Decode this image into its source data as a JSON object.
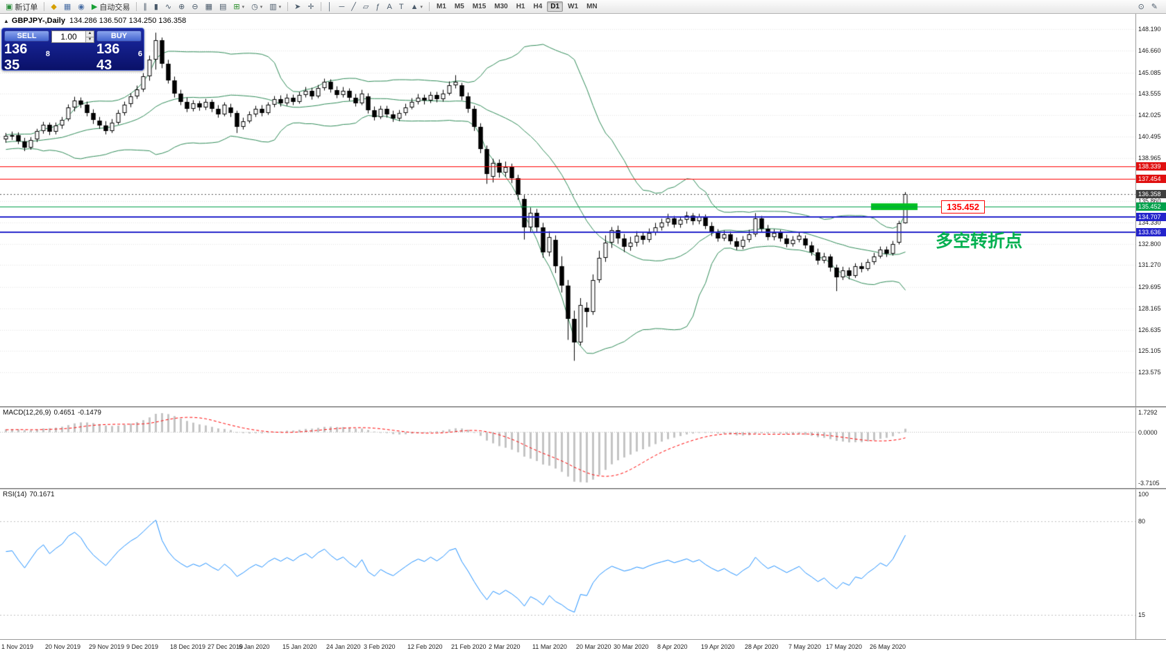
{
  "toolbar": {
    "items": [
      {
        "name": "new-order",
        "glyph": "▣",
        "glyph_color": "#2e8f3e",
        "label": "新订单"
      },
      {
        "name": "sep"
      },
      {
        "name": "alerts",
        "glyph": "◆",
        "glyph_color": "#d59f00"
      },
      {
        "name": "market-watch",
        "glyph": "▦",
        "glyph_color": "#4a6fa5"
      },
      {
        "name": "data-window",
        "glyph": "◉",
        "glyph_color": "#4a6fa5"
      },
      {
        "name": "autotrading",
        "glyph": "▶",
        "glyph_color": "#18a035",
        "label": "自动交易"
      },
      {
        "name": "sep"
      },
      {
        "name": "bar-chart",
        "glyph": "∥"
      },
      {
        "name": "candlestick-chart",
        "glyph": "▮"
      },
      {
        "name": "line-chart",
        "glyph": "∿"
      },
      {
        "name": "zoom-in",
        "glyph": "⊕"
      },
      {
        "name": "zoom-out",
        "glyph": "⊖"
      },
      {
        "name": "tile-windows",
        "glyph": "▦"
      },
      {
        "name": "auto-arrange",
        "glyph": "▤"
      },
      {
        "name": "new-chart",
        "glyph": "⊞",
        "glyph_color": "#2a8f2a",
        "dropdown": true
      },
      {
        "name": "profiles",
        "glyph": "◷",
        "dropdown": true
      },
      {
        "name": "templates",
        "glyph": "▥",
        "dropdown": true
      },
      {
        "name": "sep"
      },
      {
        "name": "cursor",
        "glyph": "➤"
      },
      {
        "name": "crosshair",
        "glyph": "✛"
      },
      {
        "name": "sep"
      },
      {
        "name": "vertical-line",
        "glyph": "│"
      },
      {
        "name": "horizontal-line",
        "glyph": "─"
      },
      {
        "name": "trendline",
        "glyph": "╱"
      },
      {
        "name": "equidistant-channel",
        "glyph": "▱"
      },
      {
        "name": "fibonacci",
        "glyph": "ƒ"
      },
      {
        "name": "text",
        "glyph": "A"
      },
      {
        "name": "text-label",
        "glyph": "T"
      },
      {
        "name": "arrows-shapes",
        "glyph": "▲",
        "dropdown": true
      },
      {
        "name": "sep"
      }
    ],
    "timeframes": [
      "M1",
      "M5",
      "M15",
      "M30",
      "H1",
      "H4",
      "D1",
      "W1",
      "MN"
    ],
    "active_timeframe": "D1",
    "right_items": [
      {
        "name": "search",
        "glyph": "⊙"
      },
      {
        "name": "metaeditor",
        "glyph": "✎"
      }
    ]
  },
  "chart": {
    "title": "GBPJPY-,Daily",
    "ohlc_text": "134.286 136.507 134.250 136.358",
    "collapse_arrow": "▲",
    "trade_panel": {
      "sell_label": "SELL",
      "buy_label": "BUY",
      "volume": "1.00",
      "sell_price_main": "136 35",
      "sell_price_sup": "8",
      "buy_price_main": "136 43",
      "buy_price_sup": "6"
    }
  },
  "chart_data": {
    "type": "candlestick",
    "symbol": "GBPJPY-",
    "period": "Daily",
    "current": {
      "open": 134.286,
      "high": 136.507,
      "low": 134.25,
      "close": 136.358,
      "bid": 136.358,
      "ask": 136.436
    },
    "y_view_range": [
      121.14,
      149.3
    ],
    "y_ticks": [
      148.19,
      146.66,
      145.085,
      143.555,
      142.025,
      140.495,
      138.965,
      137.435,
      135.86,
      134.33,
      132.8,
      131.27,
      129.695,
      128.165,
      126.635,
      125.105,
      123.575
    ],
    "candles": [
      [
        140.3,
        140.75,
        140.05,
        140.55
      ],
      [
        140.55,
        140.85,
        140.25,
        140.6
      ],
      [
        140.6,
        140.8,
        139.95,
        140.15
      ],
      [
        140.15,
        140.4,
        139.45,
        139.7
      ],
      [
        139.7,
        140.45,
        139.55,
        140.25
      ],
      [
        140.3,
        141.05,
        140.1,
        140.9
      ],
      [
        140.9,
        141.55,
        140.7,
        141.35
      ],
      [
        141.35,
        141.5,
        140.6,
        140.85
      ],
      [
        140.85,
        141.5,
        140.65,
        141.3
      ],
      [
        141.3,
        141.9,
        141.05,
        141.7
      ],
      [
        141.75,
        142.8,
        141.6,
        142.6
      ],
      [
        142.6,
        143.35,
        142.3,
        143.1
      ],
      [
        143.1,
        143.3,
        142.55,
        142.8
      ],
      [
        142.8,
        143.0,
        141.95,
        142.2
      ],
      [
        142.2,
        142.45,
        141.4,
        141.7
      ],
      [
        141.65,
        141.9,
        141.05,
        141.3
      ],
      [
        141.3,
        141.6,
        140.65,
        140.9
      ],
      [
        140.9,
        141.75,
        140.75,
        141.5
      ],
      [
        141.5,
        142.4,
        141.35,
        142.2
      ],
      [
        142.2,
        143.0,
        142.0,
        142.8
      ],
      [
        142.85,
        143.6,
        142.6,
        143.4
      ],
      [
        143.4,
        144.15,
        143.2,
        143.9
      ],
      [
        143.9,
        145.05,
        143.7,
        144.8
      ],
      [
        144.8,
        146.3,
        144.5,
        146.0
      ],
      [
        146.0,
        147.95,
        145.3,
        147.4
      ],
      [
        147.4,
        147.6,
        145.4,
        145.7
      ],
      [
        145.7,
        146.0,
        144.3,
        144.5
      ],
      [
        144.5,
        144.8,
        143.3,
        143.6
      ],
      [
        143.6,
        143.85,
        142.75,
        143.0
      ],
      [
        143.0,
        143.3,
        142.25,
        142.5
      ],
      [
        142.5,
        143.1,
        142.3,
        142.9
      ],
      [
        142.9,
        143.05,
        142.35,
        142.6
      ],
      [
        142.6,
        143.2,
        142.4,
        143.0
      ],
      [
        143.0,
        143.15,
        142.25,
        142.5
      ],
      [
        142.5,
        142.75,
        141.85,
        142.1
      ],
      [
        142.1,
        142.95,
        141.95,
        142.8
      ],
      [
        142.6,
        142.85,
        141.9,
        142.2
      ],
      [
        142.2,
        142.35,
        140.75,
        141.2
      ],
      [
        141.2,
        141.85,
        141.0,
        141.6
      ],
      [
        141.6,
        142.3,
        141.45,
        142.1
      ],
      [
        142.1,
        142.7,
        141.9,
        142.5
      ],
      [
        142.5,
        142.75,
        141.95,
        142.2
      ],
      [
        142.2,
        142.95,
        142.05,
        142.8
      ],
      [
        142.8,
        143.4,
        142.6,
        143.2
      ],
      [
        143.2,
        143.45,
        142.65,
        142.9
      ],
      [
        142.9,
        143.55,
        142.7,
        143.3
      ],
      [
        143.3,
        143.5,
        142.75,
        143.0
      ],
      [
        143.0,
        143.7,
        142.85,
        143.5
      ],
      [
        143.5,
        144.05,
        143.3,
        143.8
      ],
      [
        143.8,
        144.0,
        143.15,
        143.4
      ],
      [
        143.4,
        144.2,
        143.25,
        144.0
      ],
      [
        144.0,
        144.65,
        143.8,
        144.4
      ],
      [
        144.4,
        144.6,
        143.65,
        143.9
      ],
      [
        143.85,
        144.1,
        143.25,
        143.5
      ],
      [
        143.5,
        144.05,
        143.3,
        143.8
      ],
      [
        143.8,
        143.95,
        143.05,
        143.3
      ],
      [
        143.3,
        143.55,
        142.65,
        142.9
      ],
      [
        142.9,
        143.85,
        142.75,
        143.6
      ],
      [
        143.4,
        143.6,
        142.15,
        142.4
      ],
      [
        142.4,
        142.65,
        141.65,
        141.9
      ],
      [
        141.9,
        142.7,
        141.75,
        142.5
      ],
      [
        142.5,
        142.7,
        141.85,
        142.1
      ],
      [
        142.1,
        142.35,
        141.55,
        141.8
      ],
      [
        141.8,
        142.4,
        141.6,
        142.2
      ],
      [
        142.2,
        142.85,
        142.0,
        142.6
      ],
      [
        142.6,
        143.25,
        142.45,
        143.0
      ],
      [
        143.0,
        143.55,
        142.8,
        143.3
      ],
      [
        143.3,
        143.5,
        142.8,
        143.1
      ],
      [
        143.1,
        143.7,
        142.9,
        143.5
      ],
      [
        143.5,
        143.7,
        142.95,
        143.2
      ],
      [
        143.2,
        143.85,
        143.0,
        143.6
      ],
      [
        143.6,
        144.45,
        143.45,
        144.2
      ],
      [
        144.2,
        144.9,
        143.95,
        144.4
      ],
      [
        144.2,
        144.35,
        143.1,
        143.4
      ],
      [
        143.4,
        143.65,
        142.2,
        142.5
      ],
      [
        142.5,
        142.7,
        140.9,
        141.2
      ],
      [
        141.2,
        141.45,
        139.3,
        139.6
      ],
      [
        139.6,
        139.85,
        137.1,
        137.8
      ],
      [
        137.6,
        138.9,
        137.2,
        138.6
      ],
      [
        138.6,
        138.85,
        137.55,
        137.9
      ],
      [
        137.9,
        138.7,
        137.6,
        138.3
      ],
      [
        138.3,
        138.55,
        137.15,
        137.5
      ],
      [
        137.5,
        137.75,
        135.95,
        136.3
      ],
      [
        136.0,
        136.3,
        133.1,
        134.0
      ],
      [
        134.0,
        135.4,
        133.6,
        135.0
      ],
      [
        135.0,
        135.3,
        133.6,
        134.0
      ],
      [
        134.0,
        134.3,
        131.8,
        132.2
      ],
      [
        132.2,
        133.7,
        131.9,
        133.3
      ],
      [
        133.1,
        133.4,
        130.7,
        131.2
      ],
      [
        131.2,
        131.9,
        129.3,
        129.8
      ],
      [
        129.8,
        130.2,
        125.9,
        127.4
      ],
      [
        127.4,
        128.0,
        124.4,
        125.7
      ],
      [
        125.7,
        128.9,
        125.5,
        128.4
      ],
      [
        128.2,
        128.6,
        126.8,
        127.9
      ],
      [
        127.9,
        130.6,
        127.7,
        130.2
      ],
      [
        130.2,
        132.3,
        130.0,
        131.8
      ],
      [
        131.8,
        133.4,
        131.5,
        132.9
      ],
      [
        132.9,
        134.0,
        132.5,
        133.8
      ],
      [
        133.8,
        134.1,
        132.8,
        133.2
      ],
      [
        133.2,
        133.5,
        132.2,
        132.6
      ],
      [
        132.6,
        133.3,
        132.3,
        132.9
      ],
      [
        132.9,
        133.7,
        132.6,
        133.4
      ],
      [
        133.4,
        133.65,
        132.75,
        133.1
      ],
      [
        133.1,
        133.9,
        132.9,
        133.6
      ],
      [
        133.6,
        134.3,
        133.4,
        134.0
      ],
      [
        134.0,
        134.6,
        133.75,
        134.3
      ],
      [
        134.3,
        134.95,
        134.05,
        134.6
      ],
      [
        134.6,
        134.8,
        133.95,
        134.2
      ],
      [
        134.2,
        134.75,
        133.95,
        134.5
      ],
      [
        134.5,
        135.1,
        134.25,
        134.8
      ],
      [
        134.8,
        135.0,
        134.15,
        134.4
      ],
      [
        134.4,
        134.95,
        134.2,
        134.7
      ],
      [
        134.7,
        134.9,
        133.85,
        134.1
      ],
      [
        134.1,
        134.35,
        133.35,
        133.6
      ],
      [
        133.6,
        133.85,
        132.95,
        133.2
      ],
      [
        133.2,
        133.75,
        133.0,
        133.5
      ],
      [
        133.5,
        133.7,
        132.75,
        133.0
      ],
      [
        133.0,
        133.25,
        132.35,
        132.6
      ],
      [
        132.6,
        133.35,
        132.4,
        133.1
      ],
      [
        133.1,
        133.8,
        132.9,
        133.5
      ],
      [
        133.5,
        135.0,
        133.3,
        134.6
      ],
      [
        134.6,
        134.8,
        133.65,
        133.9
      ],
      [
        133.9,
        134.15,
        133.05,
        133.3
      ],
      [
        133.3,
        133.85,
        133.05,
        133.6
      ],
      [
        133.6,
        133.8,
        132.95,
        133.2
      ],
      [
        133.2,
        133.45,
        132.55,
        132.8
      ],
      [
        132.8,
        133.35,
        132.6,
        133.1
      ],
      [
        133.1,
        133.65,
        132.9,
        133.4
      ],
      [
        133.2,
        133.4,
        132.45,
        132.7
      ],
      [
        132.7,
        132.95,
        131.95,
        132.2
      ],
      [
        132.2,
        132.45,
        131.3,
        131.6
      ],
      [
        131.6,
        132.15,
        131.4,
        131.9
      ],
      [
        131.9,
        132.05,
        130.8,
        131.1
      ],
      [
        131.1,
        131.3,
        129.4,
        130.4
      ],
      [
        130.4,
        131.15,
        130.2,
        130.9
      ],
      [
        130.9,
        131.1,
        130.25,
        130.5
      ],
      [
        130.5,
        131.4,
        130.35,
        131.2
      ],
      [
        131.2,
        131.45,
        130.75,
        131.0
      ],
      [
        131.0,
        131.7,
        130.85,
        131.5
      ],
      [
        131.5,
        132.15,
        131.3,
        131.9
      ],
      [
        131.9,
        132.6,
        131.75,
        132.4
      ],
      [
        132.4,
        132.6,
        131.85,
        132.1
      ],
      [
        132.1,
        133.0,
        131.95,
        132.8
      ],
      [
        132.9,
        134.45,
        132.75,
        134.28
      ],
      [
        134.286,
        136.507,
        134.25,
        136.358
      ]
    ],
    "overlays": {
      "bollinger": {
        "period": 20,
        "deviation": 2,
        "color": "#2e8b57"
      },
      "hlines": [
        {
          "price": 138.339,
          "color": "#ff0000",
          "width": 1,
          "badge": "138.339",
          "badge_color": "#e01010"
        },
        {
          "price": 137.454,
          "color": "#ff0000",
          "width": 1,
          "badge": "137.454",
          "badge_color": "#e01010"
        },
        {
          "price": 135.452,
          "color": "#00a14b",
          "width": 1,
          "badge": "135.452",
          "badge_color": "#00a14b"
        },
        {
          "price": 134.707,
          "color": "#2424cc",
          "width": 2,
          "badge": "134.707",
          "badge_color": "#2424cc"
        },
        {
          "price": 133.636,
          "color": "#2424cc",
          "width": 2,
          "badge": "133.636",
          "badge_color": "#2424cc"
        }
      ],
      "current_price_line": {
        "price": 136.358,
        "color": "#555555",
        "badge": "136.358",
        "badge_color": "#3f3f3f"
      },
      "rectangle": {
        "start_index": 139,
        "end_index": 146,
        "price_top": 135.7,
        "price_bottom": 135.22,
        "color": "#00c020"
      },
      "callout": {
        "text": "135.452",
        "price": 135.452,
        "color": "#ff0000"
      },
      "annotation_text": {
        "text": "多空转折点",
        "color": "#00b050"
      }
    },
    "macd": {
      "label": "MACD(12,26,9)",
      "value_main": "0.4651",
      "value_signal": "-0.1479",
      "fast": 12,
      "slow": 26,
      "signal": 9,
      "histogram_color": "#c4c4c4",
      "signal_color": "#ff0000",
      "scale_top": "1.7292",
      "scale_zero": "0.0000",
      "scale_bottom": "-3.7105"
    },
    "rsi": {
      "label": "RSI(14)",
      "value": "70.1671",
      "period": 14,
      "color": "#1e90ff",
      "scale_top": "100",
      "levels": [
        80,
        15
      ]
    }
  },
  "time_axis": {
    "labels": [
      {
        "i": 0,
        "t": "1 Nov 2019"
      },
      {
        "i": 7,
        "t": "20 Nov 2019"
      },
      {
        "i": 14,
        "t": "29 Nov 2019"
      },
      {
        "i": 20,
        "t": "9 Dec 2019"
      },
      {
        "i": 27,
        "t": "18 Dec 2019"
      },
      {
        "i": 33,
        "t": "27 Dec 2019"
      },
      {
        "i": 38,
        "t": "6 Jan 2020"
      },
      {
        "i": 45,
        "t": "15 Jan 2020"
      },
      {
        "i": 52,
        "t": "24 Jan 2020"
      },
      {
        "i": 58,
        "t": "3 Feb 2020"
      },
      {
        "i": 65,
        "t": "12 Feb 2020"
      },
      {
        "i": 72,
        "t": "21 Feb 2020"
      },
      {
        "i": 78,
        "t": "2 Mar 2020"
      },
      {
        "i": 85,
        "t": "11 Mar 2020"
      },
      {
        "i": 92,
        "t": "20 Mar 2020"
      },
      {
        "i": 98,
        "t": "30 Mar 2020"
      },
      {
        "i": 105,
        "t": "8 Apr 2020"
      },
      {
        "i": 112,
        "t": "19 Apr 2020"
      },
      {
        "i": 119,
        "t": "28 Apr 2020"
      },
      {
        "i": 126,
        "t": "7 May 2020"
      },
      {
        "i": 132,
        "t": "17 May 2020"
      },
      {
        "i": 139,
        "t": "26 May 2020"
      }
    ]
  }
}
